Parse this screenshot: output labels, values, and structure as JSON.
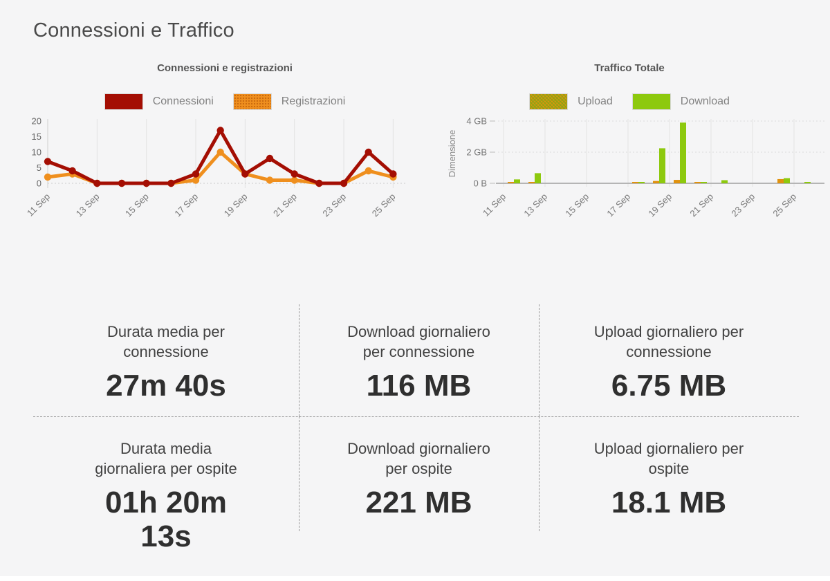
{
  "page": {
    "title": "Connessioni e Traffico"
  },
  "colors": {
    "background": "#f5f5f6",
    "connessioni": "#a40e03",
    "registrazioni": "#ef8f1e",
    "upload": "#e0920f",
    "download": "#8dc90e",
    "grid": "#e2e2e2",
    "axis": "#b5b5b5",
    "divider": "#999999"
  },
  "chart_data": [
    {
      "type": "line",
      "title": "Connessioni e registrazioni",
      "categories": [
        "11 Sep",
        "12 Sep",
        "13 Sep",
        "14 Sep",
        "15 Sep",
        "16 Sep",
        "17 Sep",
        "18 Sep",
        "19 Sep",
        "20 Sep",
        "21 Sep",
        "22 Sep",
        "23 Sep",
        "24 Sep",
        "25 Sep"
      ],
      "x_tick_labels": [
        "11 Sep",
        "13 Sep",
        "15 Sep",
        "17 Sep",
        "19 Sep",
        "21 Sep",
        "23 Sep",
        "25 Sep"
      ],
      "yticks": [
        0,
        5,
        10,
        15,
        20
      ],
      "ylim": [
        0,
        20
      ],
      "grid": true,
      "legend_position": "top",
      "series": [
        {
          "name": "Connessioni",
          "color": "#a40e03",
          "values": [
            7,
            4,
            0,
            0,
            0,
            0,
            3,
            17,
            3,
            8,
            3,
            0,
            0,
            10,
            3
          ]
        },
        {
          "name": "Registrazioni",
          "color": "#ef8f1e",
          "values": [
            2,
            3,
            0,
            0,
            0,
            0,
            1,
            10,
            3,
            1,
            1,
            0,
            0,
            4,
            2
          ]
        }
      ]
    },
    {
      "type": "bar",
      "title": "Traffico Totale",
      "ylabel": "Dimensione",
      "categories": [
        "11 Sep",
        "12 Sep",
        "13 Sep",
        "14 Sep",
        "15 Sep",
        "16 Sep",
        "17 Sep",
        "18 Sep",
        "19 Sep",
        "20 Sep",
        "21 Sep",
        "22 Sep",
        "23 Sep",
        "24 Sep",
        "25 Sep"
      ],
      "x_tick_labels": [
        "11 Sep",
        "13 Sep",
        "15 Sep",
        "17 Sep",
        "19 Sep",
        "21 Sep",
        "23 Sep",
        "25 Sep"
      ],
      "ytick_labels": [
        "0 B",
        "2 GB",
        "4 GB"
      ],
      "yticks_gb": [
        0,
        2,
        4
      ],
      "ylim_gb": [
        0,
        4
      ],
      "unit": "GB",
      "grid": true,
      "legend_position": "top",
      "series": [
        {
          "name": "Upload",
          "color": "#e0920f",
          "values": [
            0.05,
            0.04,
            0,
            0,
            0,
            0,
            0.03,
            0.15,
            0.22,
            0.03,
            0,
            0,
            0,
            0.27,
            0
          ]
        },
        {
          "name": "Download",
          "color": "#8dc90e",
          "values": [
            0.25,
            0.65,
            0,
            0,
            0,
            0,
            0.06,
            2.25,
            3.9,
            0.06,
            0.2,
            0,
            0,
            0.33,
            0.08
          ]
        }
      ]
    }
  ],
  "stats": {
    "rows": [
      [
        {
          "label": "Durata media per connessione",
          "value": "27m 40s"
        },
        {
          "label": "Download giornaliero per connessione",
          "value": "116 MB"
        },
        {
          "label": "Upload giornaliero per connessione",
          "value": "6.75 MB"
        }
      ],
      [
        {
          "label": "Durata media giornaliera per ospite",
          "value": "01h 20m 13s"
        },
        {
          "label": "Download giornaliero per ospite",
          "value": "221 MB"
        },
        {
          "label": "Upload giornaliero per ospite",
          "value": "18.1 MB"
        }
      ]
    ]
  }
}
